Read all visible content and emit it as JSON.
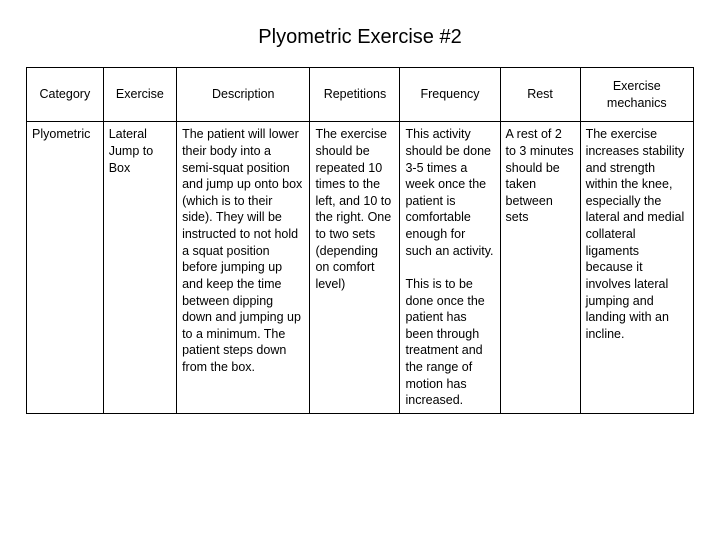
{
  "title": "Plyometric Exercise #2",
  "table": {
    "columns": [
      "Category",
      "Exercise",
      "Description",
      "Repetitions",
      "Frequency",
      "Rest",
      "Exercise mechanics"
    ],
    "rows": [
      {
        "category": "Plyometric",
        "exercise": "Lateral Jump to Box",
        "description": "The patient will lower their body into a semi-squat position and jump up onto box (which is to their side). They will be instructed to not hold a squat position before jumping up and keep the time between dipping down and jumping up to a minimum. The patient steps down from the box.",
        "repetitions": "The exercise should be repeated 10 times to the left, and 10 to the right. One to two sets (depending on comfort level)",
        "frequency": "This activity should be done 3-5 times a week once the patient is comfortable enough for such an activity.\n\nThis is to be done once the patient has been through treatment and the range of motion has increased.",
        "rest": "A rest of 2 to 3 minutes should be taken between sets",
        "mechanics": "The exercise increases stability and strength within the knee, especially the lateral and medial collateral ligaments because it involves lateral jumping and landing with an incline."
      }
    ]
  },
  "style": {
    "background_color": "#ffffff",
    "border_color": "#000000",
    "text_color": "#000000",
    "title_fontsize": 20,
    "cell_fontsize": 12.5,
    "column_widths_pct": [
      11.5,
      11,
      20,
      13.5,
      15,
      12,
      17
    ]
  }
}
